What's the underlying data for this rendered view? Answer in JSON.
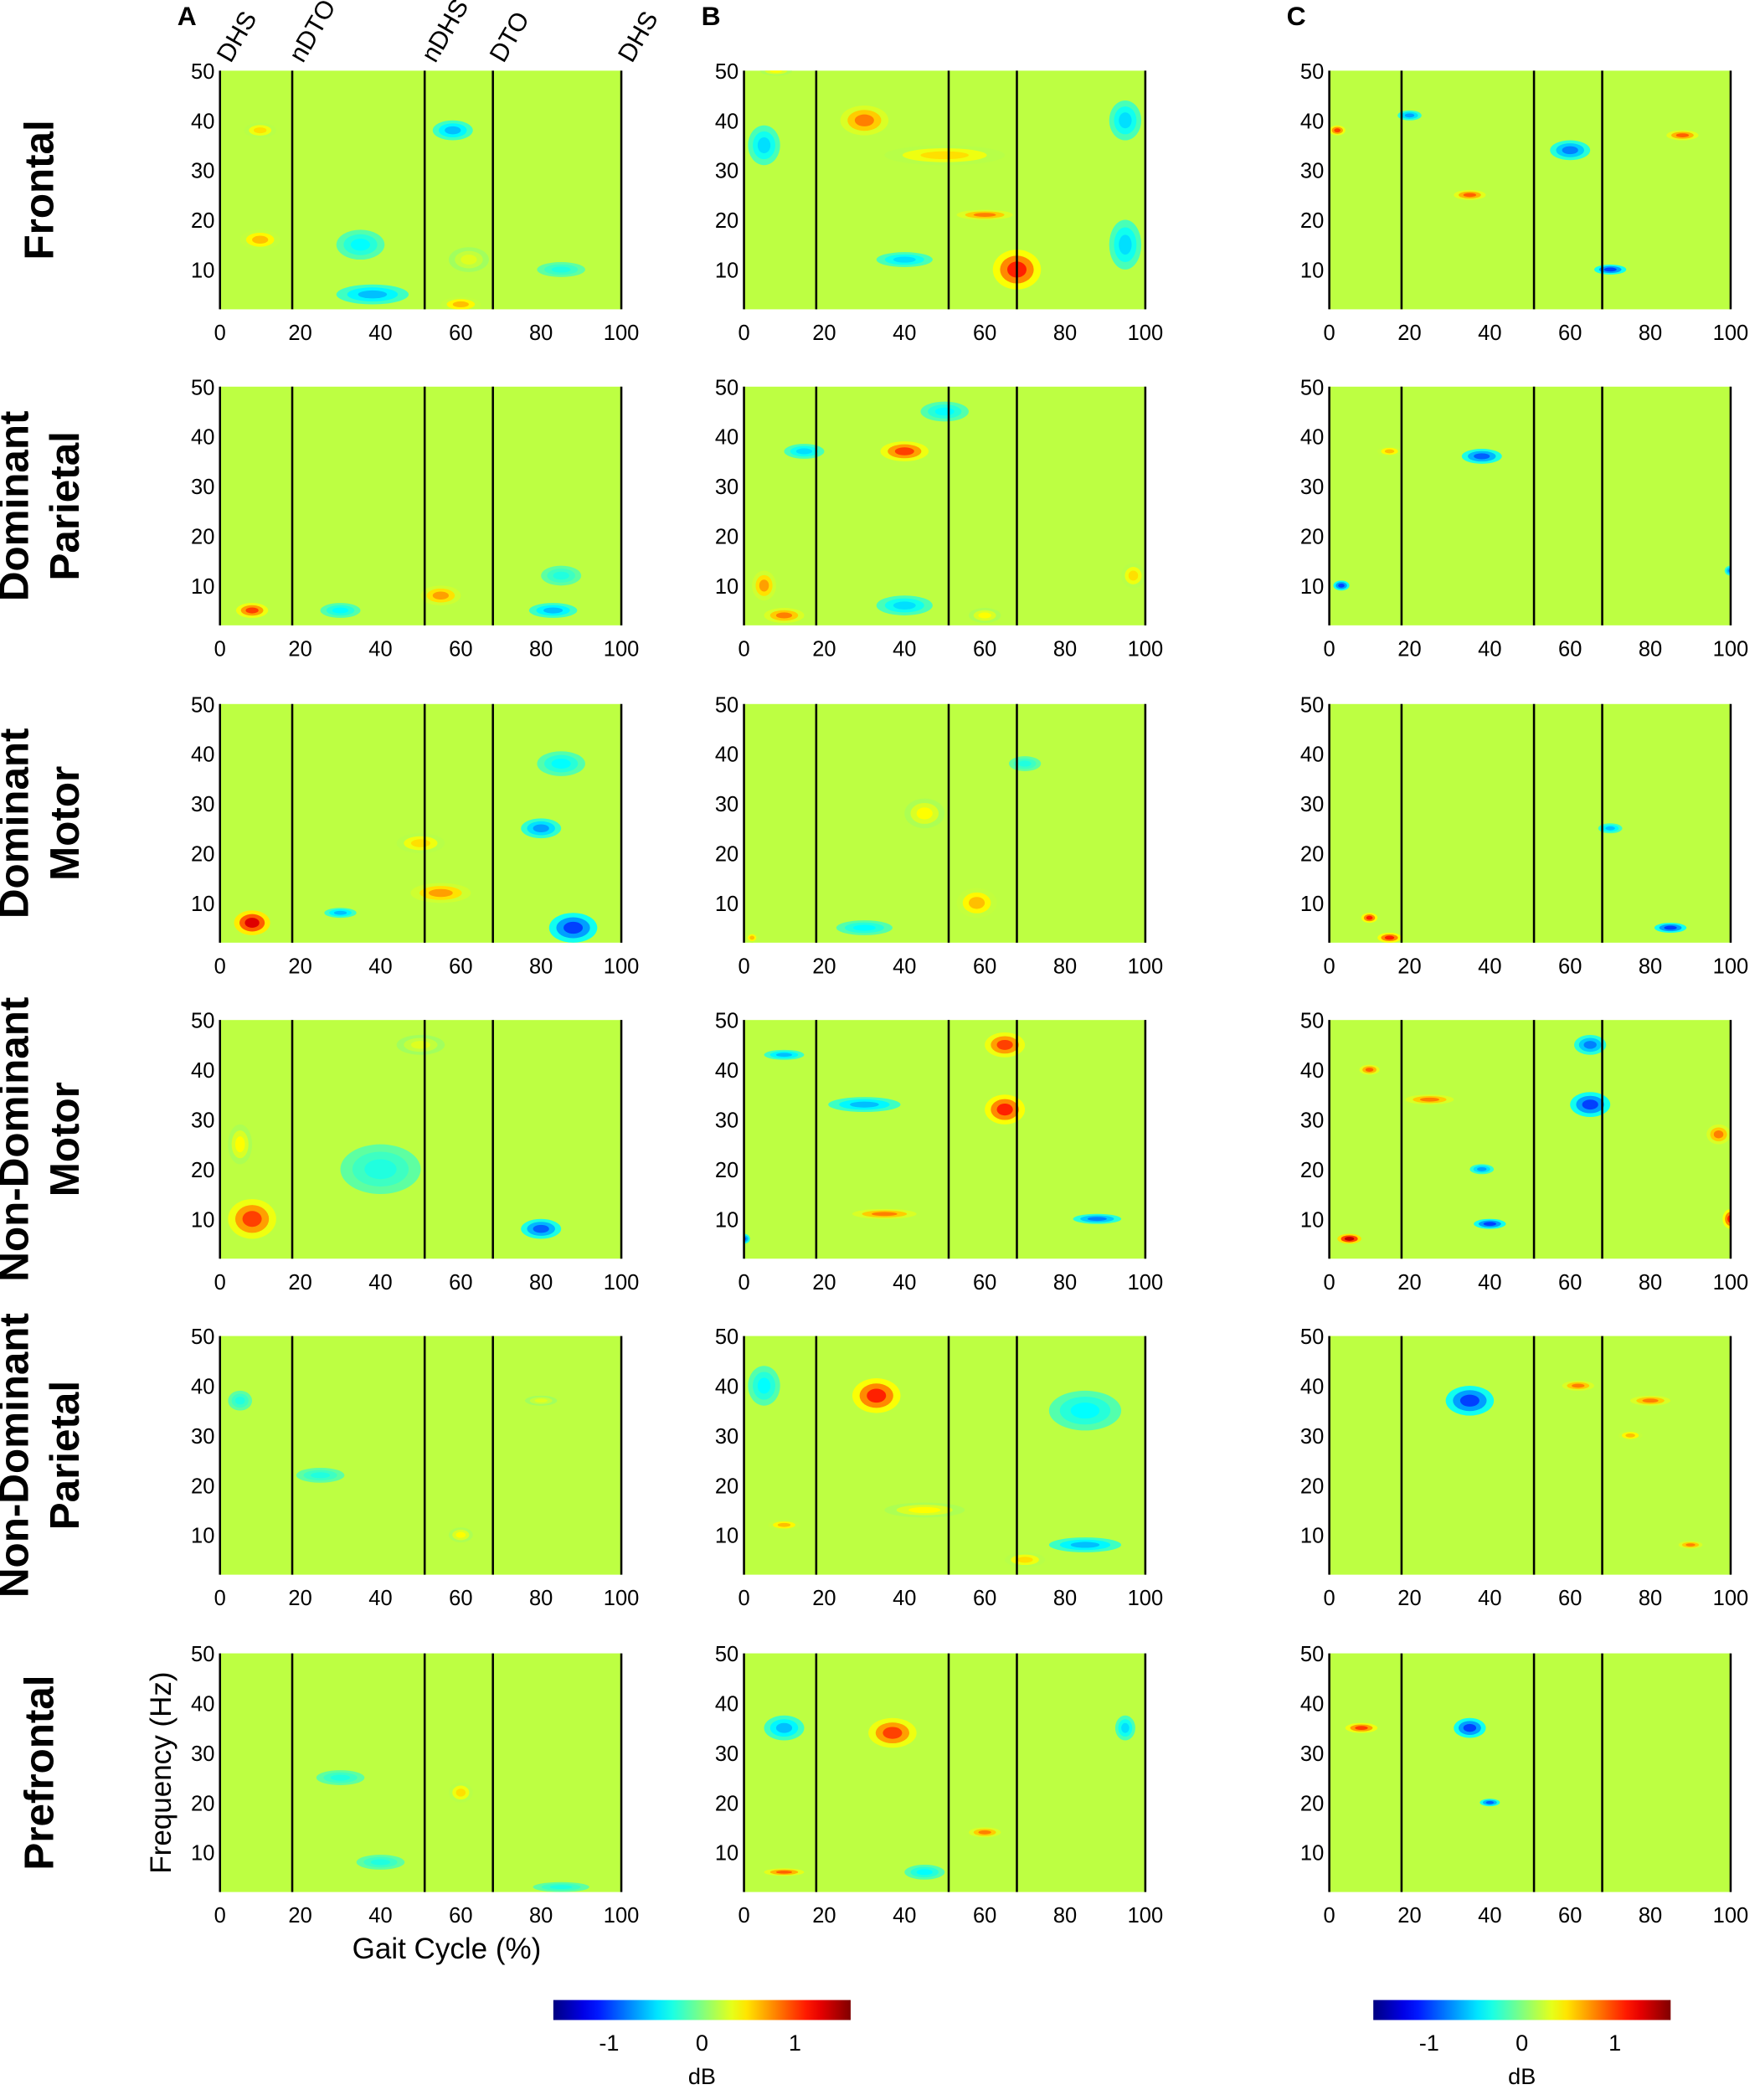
{
  "chart_data": {
    "type": "heatmap",
    "columns": [
      "A",
      "B",
      "C"
    ],
    "rows": [
      {
        "label": [
          "Frontal"
        ]
      },
      {
        "label": [
          "Dominant",
          "Parietal"
        ]
      },
      {
        "label": [
          "Dominant",
          "Motor"
        ]
      },
      {
        "label": [
          "Non-Dominant",
          "Motor"
        ]
      },
      {
        "label": [
          "Non-Dominant",
          "Parietal"
        ]
      },
      {
        "label": [
          "Prefrontal"
        ]
      }
    ],
    "events": [
      "DHS",
      "nDTO",
      "nDHS",
      "DTO",
      "DHS"
    ],
    "event_positions": [
      0,
      18,
      51,
      68,
      100
    ],
    "xlabel": "Gait Cycle (%)",
    "ylabel": "Frequency (Hz)",
    "xlim": [
      0,
      100
    ],
    "ylim": [
      2,
      50
    ],
    "xticks": [
      "0",
      "20",
      "40",
      "60",
      "80",
      "100"
    ],
    "yticks": [
      "10",
      "20",
      "30",
      "40",
      "50"
    ],
    "colorbar": {
      "label": "dB",
      "ticks": [
        "-1",
        "0",
        "1"
      ],
      "clim": [
        -1.6,
        1.6
      ],
      "colormap": "jet"
    },
    "blob_fields": [
      "gait_pct",
      "freq_hz",
      "width_pct",
      "height_hz",
      "value_db"
    ],
    "panels": [
      [
        [
          [
            10,
            38,
            8,
            3,
            0.5
          ],
          [
            10,
            16,
            10,
            4,
            0.6
          ],
          [
            38,
            5,
            18,
            4,
            -0.6
          ],
          [
            58,
            38,
            10,
            4,
            -0.6
          ],
          [
            60,
            3,
            10,
            3,
            0.6
          ],
          [
            35,
            15,
            12,
            6,
            -0.4
          ],
          [
            85,
            10,
            12,
            3,
            -0.3
          ],
          [
            62,
            12,
            10,
            5,
            0.3
          ]
        ],
        [
          [
            30,
            40,
            12,
            6,
            0.8
          ],
          [
            5,
            35,
            8,
            8,
            -0.5
          ],
          [
            50,
            33,
            30,
            4,
            0.5
          ],
          [
            68,
            10,
            12,
            8,
            1.1
          ],
          [
            40,
            12,
            14,
            3,
            -0.5
          ],
          [
            95,
            15,
            8,
            10,
            -0.5
          ],
          [
            95,
            40,
            8,
            8,
            -0.5
          ],
          [
            60,
            21,
            14,
            2,
            0.8
          ],
          [
            8,
            50,
            8,
            2,
            0.4
          ]
        ],
        [
          [
            2,
            38,
            4,
            2,
            1.0
          ],
          [
            60,
            34,
            10,
            4,
            -0.8
          ],
          [
            70,
            10,
            8,
            2,
            -1.0
          ],
          [
            35,
            25,
            8,
            2,
            0.9
          ],
          [
            88,
            37,
            8,
            2,
            0.9
          ],
          [
            20,
            41,
            6,
            2,
            -0.7
          ]
        ]
      ],
      [
        [
          [
            8,
            5,
            8,
            3,
            1.0
          ],
          [
            55,
            8,
            10,
            4,
            0.7
          ],
          [
            83,
            5,
            12,
            3,
            -0.6
          ],
          [
            30,
            5,
            10,
            3,
            -0.4
          ],
          [
            85,
            12,
            10,
            4,
            -0.3
          ]
        ],
        [
          [
            40,
            37,
            12,
            4,
            1.0
          ],
          [
            15,
            37,
            10,
            3,
            -0.5
          ],
          [
            5,
            10,
            6,
            6,
            0.7
          ],
          [
            10,
            4,
            10,
            3,
            0.8
          ],
          [
            40,
            6,
            14,
            4,
            -0.5
          ],
          [
            60,
            4,
            8,
            3,
            0.4
          ],
          [
            97,
            12,
            6,
            5,
            0.5
          ],
          [
            50,
            45,
            12,
            4,
            -0.4
          ]
        ],
        [
          [
            38,
            36,
            10,
            3,
            -0.9
          ],
          [
            15,
            37,
            6,
            2,
            0.6
          ],
          [
            3,
            10,
            4,
            2,
            -1.0
          ],
          [
            100,
            13,
            3,
            2,
            -0.8
          ]
        ]
      ],
      [
        [
          [
            8,
            6,
            9,
            5,
            1.3
          ],
          [
            55,
            12,
            15,
            4,
            0.7
          ],
          [
            88,
            5,
            12,
            6,
            -1.0
          ],
          [
            80,
            25,
            10,
            4,
            -0.7
          ],
          [
            30,
            8,
            8,
            2,
            -0.6
          ],
          [
            50,
            22,
            12,
            4,
            0.5
          ],
          [
            85,
            38,
            12,
            5,
            -0.4
          ]
        ],
        [
          [
            58,
            10,
            10,
            6,
            0.6
          ],
          [
            45,
            28,
            10,
            6,
            0.4
          ],
          [
            30,
            5,
            14,
            3,
            -0.4
          ],
          [
            2,
            3,
            3,
            2,
            0.6
          ],
          [
            70,
            38,
            8,
            3,
            -0.3
          ]
        ],
        [
          [
            85,
            5,
            8,
            2,
            -1.0
          ],
          [
            10,
            7,
            4,
            2,
            1.1
          ],
          [
            15,
            3,
            6,
            2,
            1.1
          ],
          [
            70,
            25,
            6,
            2,
            -0.6
          ]
        ]
      ],
      [
        [
          [
            8,
            10,
            12,
            8,
            1.0
          ],
          [
            80,
            8,
            10,
            4,
            -0.9
          ],
          [
            5,
            25,
            6,
            8,
            0.4
          ],
          [
            40,
            20,
            20,
            10,
            -0.3
          ],
          [
            50,
            45,
            12,
            4,
            0.3
          ]
        ],
        [
          [
            65,
            32,
            10,
            6,
            1.1
          ],
          [
            65,
            45,
            10,
            5,
            1.0
          ],
          [
            30,
            33,
            18,
            3,
            -0.6
          ],
          [
            10,
            43,
            10,
            2,
            -0.6
          ],
          [
            35,
            11,
            16,
            2,
            0.8
          ],
          [
            88,
            10,
            12,
            2,
            -0.8
          ],
          [
            0,
            6,
            3,
            2,
            -0.9
          ]
        ],
        [
          [
            5,
            6,
            6,
            2,
            1.4
          ],
          [
            100,
            10,
            4,
            4,
            1.1
          ],
          [
            65,
            33,
            10,
            5,
            -1.0
          ],
          [
            65,
            45,
            8,
            4,
            -0.8
          ],
          [
            40,
            9,
            8,
            2,
            -1.0
          ],
          [
            25,
            34,
            12,
            2,
            0.8
          ],
          [
            97,
            27,
            6,
            4,
            0.8
          ],
          [
            38,
            20,
            6,
            2,
            -0.7
          ],
          [
            10,
            40,
            5,
            2,
            0.9
          ]
        ]
      ],
      [
        [
          [
            5,
            37,
            6,
            4,
            -0.3
          ],
          [
            60,
            10,
            6,
            3,
            0.4
          ],
          [
            80,
            37,
            8,
            2,
            0.3
          ],
          [
            25,
            22,
            12,
            3,
            -0.3
          ]
        ],
        [
          [
            33,
            38,
            12,
            7,
            1.1
          ],
          [
            5,
            40,
            8,
            8,
            -0.4
          ],
          [
            85,
            35,
            18,
            8,
            -0.4
          ],
          [
            85,
            8,
            18,
            3,
            -0.6
          ],
          [
            70,
            5,
            10,
            3,
            0.5
          ],
          [
            45,
            15,
            20,
            3,
            0.4
          ],
          [
            10,
            12,
            8,
            2,
            0.6
          ]
        ],
        [
          [
            35,
            37,
            12,
            6,
            -1.0
          ],
          [
            62,
            40,
            8,
            2,
            0.8
          ],
          [
            80,
            37,
            10,
            2,
            0.8
          ],
          [
            90,
            8,
            6,
            1.5,
            0.8
          ],
          [
            75,
            30,
            6,
            2,
            0.6
          ]
        ]
      ],
      [
        [
          [
            60,
            22,
            6,
            4,
            0.5
          ],
          [
            40,
            8,
            12,
            3,
            -0.3
          ],
          [
            30,
            25,
            12,
            3,
            -0.3
          ],
          [
            85,
            3,
            14,
            2,
            -0.3
          ]
        ],
        [
          [
            37,
            34,
            12,
            6,
            1.0
          ],
          [
            10,
            35,
            10,
            5,
            -0.6
          ],
          [
            95,
            35,
            5,
            5,
            -0.5
          ],
          [
            60,
            14,
            8,
            2,
            0.8
          ],
          [
            10,
            6,
            10,
            1.5,
            0.9
          ],
          [
            45,
            6,
            10,
            3,
            -0.4
          ]
        ],
        [
          [
            35,
            35,
            8,
            4,
            -1.0
          ],
          [
            8,
            35,
            8,
            2,
            1.0
          ],
          [
            40,
            20,
            5,
            1.5,
            -0.9
          ]
        ]
      ]
    ]
  }
}
